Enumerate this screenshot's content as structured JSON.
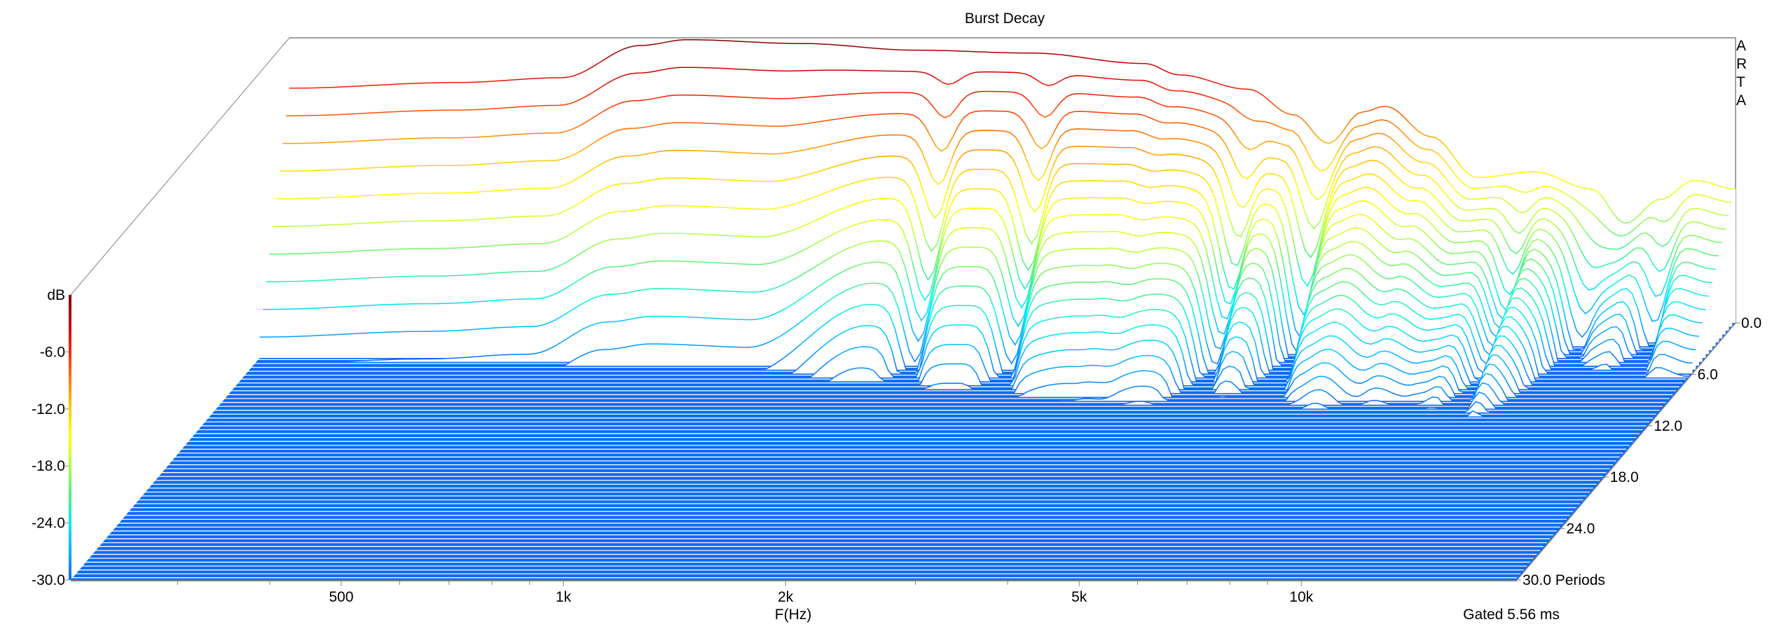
{
  "chart_data": {
    "type": "waterfall",
    "title": "Burst Decay",
    "xlabel": "F(Hz)",
    "zlabel": "dB",
    "watermark": [
      "A",
      "R",
      "T",
      "A"
    ],
    "footer": "Gated 5.56 ms",
    "freq_range": [
      215,
      19600
    ],
    "freq_ticks": [
      {
        "f": 500,
        "label": "500"
      },
      {
        "f": 1000,
        "label": "1k"
      },
      {
        "f": 2000,
        "label": "2k"
      },
      {
        "f": 5000,
        "label": "5k"
      },
      {
        "f": 10000,
        "label": "10k"
      }
    ],
    "freq_minor_ticks": [
      300,
      400,
      600,
      700,
      800,
      900,
      3000,
      4000,
      6000,
      7000,
      8000,
      9000
    ],
    "db_range": [
      -30,
      0
    ],
    "db_ticks": [
      {
        "v": -6,
        "label": "-6.0"
      },
      {
        "v": -12,
        "label": "-12.0"
      },
      {
        "v": -18,
        "label": "-18.0"
      },
      {
        "v": -24,
        "label": "-24.0"
      },
      {
        "v": -30,
        "label": "-30.0"
      }
    ],
    "period_range": [
      0,
      30
    ],
    "period_ticks": [
      {
        "v": 0,
        "label": "0.0"
      },
      {
        "v": 6,
        "label": "6.0"
      },
      {
        "v": 12,
        "label": "12.0"
      },
      {
        "v": 18,
        "label": "18.0"
      },
      {
        "v": 24,
        "label": "24.0"
      },
      {
        "v": 30,
        "label": "30.0 Periods"
      }
    ],
    "slice_count": 67,
    "initial_response_db": [
      [
        215,
        -5.3
      ],
      [
        364,
        -4.7
      ],
      [
        502,
        -4.2
      ],
      [
        644,
        -0.8
      ],
      [
        743,
        -0.2
      ],
      [
        1063,
        -0.6
      ],
      [
        1518,
        -1.3
      ],
      [
        2170,
        -1.6
      ],
      [
        3101,
        -2.7
      ],
      [
        3452,
        -3.9
      ],
      [
        4278,
        -5.4
      ],
      [
        4936,
        -8.1
      ],
      [
        5500,
        -11.1
      ],
      [
        6120,
        -7.8
      ],
      [
        6570,
        -7.2
      ],
      [
        7580,
        -10.4
      ],
      [
        8750,
        -14.7
      ],
      [
        10460,
        -14.1
      ],
      [
        12500,
        -15.9
      ],
      [
        13900,
        -19.5
      ],
      [
        15500,
        -17
      ],
      [
        17250,
        -15
      ],
      [
        19600,
        -15.9
      ]
    ],
    "decay_rate_db_per_period": [
      [
        215,
        5.5
      ],
      [
        500,
        5.5
      ],
      [
        1000,
        5.5
      ],
      [
        1500,
        4
      ],
      [
        2000,
        3.6
      ],
      [
        3000,
        3
      ],
      [
        4000,
        2.6
      ],
      [
        5000,
        2.5
      ],
      [
        7000,
        2.2
      ],
      [
        9000,
        1.6
      ],
      [
        10500,
        1.15
      ],
      [
        12000,
        1.5
      ],
      [
        15000,
        2
      ],
      [
        19600,
        2.2
      ]
    ],
    "notches_db": [
      [
        1700,
        9
      ],
      [
        2320,
        9
      ],
      [
        4370,
        10
      ],
      [
        5400,
        10
      ],
      [
        10300,
        8
      ],
      [
        12800,
        9
      ],
      [
        16100,
        9
      ]
    ],
    "colormap": [
      "#7f0000",
      "#cc0000",
      "#ff2a00",
      "#ff7f00",
      "#ffd000",
      "#ffff00",
      "#b0ff40",
      "#50f080",
      "#00f0f0",
      "#00b0ff",
      "#0a6cf5"
    ],
    "floor_color": "#0a6cf5",
    "axis_color": "#808080"
  }
}
